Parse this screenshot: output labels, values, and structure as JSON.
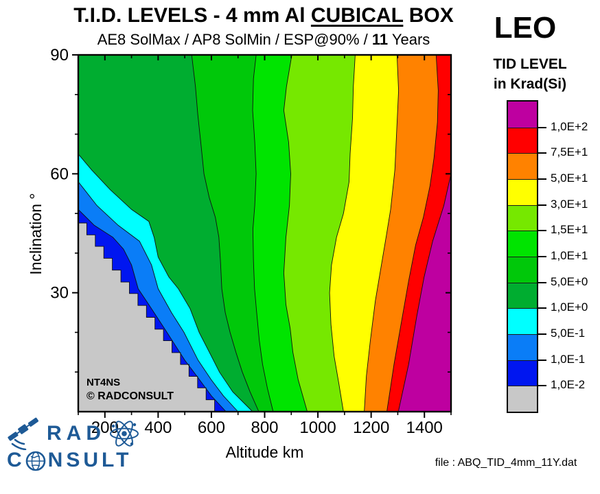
{
  "title": {
    "prefix": "T.I.D. LEVELS - 4 mm Al ",
    "underlined": "CUBICAL",
    "suffix": " BOX"
  },
  "subtitle": {
    "prefix": "AE8 SolMax / AP8 SolMin / ESP@90% / ",
    "bold": "11",
    "suffix": " Years"
  },
  "watermark": {
    "line1": "NT4NS",
    "line2": "© RADCONSULT"
  },
  "file_note": "file : ABQ_TID_4mm_11Y.dat",
  "legend": {
    "region": "LEO",
    "title_line1": "TID LEVEL",
    "title_line2": "in Krad(Si)",
    "tick_labels_top_to_bottom": [
      "1,0E+2",
      "7,5E+1",
      "5,0E+1",
      "3,0E+1",
      "1,5E+1",
      "1,0E+1",
      "5,0E+0",
      "1,0E+0",
      "5,0E-1",
      "1,0E-1",
      "1,0E-2"
    ],
    "band_colors_top_to_bottom": [
      "#BE00A0",
      "#FF0000",
      "#FF8200",
      "#FFFF00",
      "#76E800",
      "#00E400",
      "#00C80A",
      "#00AD30",
      "#00FFFF",
      "#0A7DF7",
      "#0016F0",
      "#C8C8C8"
    ]
  },
  "logo": {
    "word1": "RAD",
    "word2_prefix": "C",
    "word2_suffix": "NSULT",
    "color": "#1E5A96"
  },
  "chart_data": {
    "type": "contour",
    "title": "T.I.D. LEVELS - 4 mm Al CUBICAL BOX",
    "subtitle": "AE8 SolMax / AP8 SolMin / ESP@90% / 11 Years",
    "xlabel": "Altitude km",
    "ylabel": "Inclination °",
    "unit": "Krad(Si)",
    "grid": false,
    "legend_position": "right",
    "x_range": [
      100,
      1500
    ],
    "y_range": [
      0,
      90
    ],
    "x_major_ticks": [
      200,
      400,
      600,
      800,
      1000,
      1200,
      1400
    ],
    "x_minor_ticks": [
      100,
      300,
      500,
      700,
      900,
      1100,
      1300,
      1500
    ],
    "y_major_ticks": [
      30,
      60,
      90
    ],
    "y_minor_ticks": [
      10,
      20,
      40,
      50,
      70,
      80
    ],
    "contours": [
      {
        "level": "1,0E-2",
        "points": [
          [
            100,
            47.6
          ],
          [
            132,
            47.6
          ],
          [
            132,
            44.6
          ],
          [
            164,
            44.6
          ],
          [
            164,
            41.7
          ],
          [
            196,
            41.7
          ],
          [
            196,
            38.7
          ],
          [
            228,
            38.7
          ],
          [
            228,
            35.7
          ],
          [
            260,
            35.7
          ],
          [
            260,
            32.7
          ],
          [
            292,
            32.7
          ],
          [
            292,
            29.8
          ],
          [
            324,
            29.8
          ],
          [
            324,
            26.8
          ],
          [
            356,
            26.8
          ],
          [
            356,
            23.8
          ],
          [
            388,
            23.8
          ],
          [
            388,
            20.8
          ],
          [
            420,
            20.8
          ],
          [
            420,
            17.9
          ],
          [
            452,
            17.9
          ],
          [
            452,
            14.9
          ],
          [
            484,
            14.9
          ],
          [
            484,
            11.9
          ],
          [
            516,
            11.9
          ],
          [
            516,
            8.9
          ],
          [
            548,
            8.9
          ],
          [
            548,
            6
          ],
          [
            580,
            6
          ],
          [
            580,
            3
          ],
          [
            612,
            3
          ],
          [
            612,
            0
          ]
        ]
      },
      {
        "level": "1,0E-1",
        "points": [
          [
            100,
            51
          ],
          [
            160,
            47
          ],
          [
            230,
            44
          ],
          [
            270,
            41
          ],
          [
            300,
            37
          ],
          [
            325,
            31
          ],
          [
            365,
            27
          ],
          [
            433,
            20
          ],
          [
            500,
            13
          ],
          [
            545,
            9
          ],
          [
            600,
            4
          ],
          [
            655,
            0
          ]
        ]
      },
      {
        "level": "5,0E-1",
        "points": [
          [
            100,
            58
          ],
          [
            170,
            52
          ],
          [
            250,
            47
          ],
          [
            330,
            43
          ],
          [
            375,
            37
          ],
          [
            400,
            31
          ],
          [
            450,
            25
          ],
          [
            497,
            20
          ],
          [
            550,
            13
          ],
          [
            600,
            8
          ],
          [
            645,
            4
          ],
          [
            700,
            0
          ]
        ]
      },
      {
        "level": "1,0E+0",
        "points": [
          [
            100,
            65
          ],
          [
            150,
            61
          ],
          [
            220,
            56
          ],
          [
            300,
            51
          ],
          [
            365,
            48
          ],
          [
            385,
            44
          ],
          [
            400,
            39
          ],
          [
            440,
            34
          ],
          [
            476,
            31
          ],
          [
            520,
            26
          ],
          [
            554,
            20
          ],
          [
            600,
            14
          ],
          [
            630,
            10
          ],
          [
            680,
            5
          ],
          [
            755,
            0
          ]
        ]
      },
      {
        "level": "5,0E+0",
        "points": [
          [
            526,
            90
          ],
          [
            540,
            82
          ],
          [
            549,
            75
          ],
          [
            560,
            68
          ],
          [
            572,
            60
          ],
          [
            592,
            54
          ],
          [
            615,
            49
          ],
          [
            628,
            44
          ],
          [
            634,
            38
          ],
          [
            639,
            31
          ],
          [
            652,
            25
          ],
          [
            670,
            20
          ],
          [
            692,
            15
          ],
          [
            716,
            10
          ],
          [
            745,
            5
          ],
          [
            778,
            0
          ]
        ]
      },
      {
        "level": "1,0E+1",
        "points": [
          [
            768,
            90
          ],
          [
            758,
            84
          ],
          [
            755,
            76
          ],
          [
            763,
            68
          ],
          [
            768,
            60
          ],
          [
            763,
            52
          ],
          [
            756,
            46
          ],
          [
            758,
            38
          ],
          [
            762,
            31
          ],
          [
            770,
            25
          ],
          [
            780,
            18
          ],
          [
            792,
            12
          ],
          [
            810,
            6
          ],
          [
            832,
            0
          ]
        ]
      },
      {
        "level": "1,5E+1",
        "points": [
          [
            902,
            90
          ],
          [
            882,
            82
          ],
          [
            872,
            76
          ],
          [
            890,
            68
          ],
          [
            898,
            60
          ],
          [
            893,
            52
          ],
          [
            880,
            44
          ],
          [
            872,
            35
          ],
          [
            880,
            27
          ],
          [
            896,
            21
          ],
          [
            906,
            15
          ],
          [
            926,
            8
          ],
          [
            960,
            0
          ]
        ]
      },
      {
        "level": "3,0E+1",
        "points": [
          [
            1140,
            90
          ],
          [
            1133,
            82
          ],
          [
            1130,
            74
          ],
          [
            1121,
            65
          ],
          [
            1117,
            58
          ],
          [
            1096,
            50
          ],
          [
            1070,
            44
          ],
          [
            1051,
            37
          ],
          [
            1044,
            30
          ],
          [
            1049,
            22
          ],
          [
            1061,
            14
          ],
          [
            1079,
            7
          ],
          [
            1096,
            0
          ]
        ]
      },
      {
        "level": "5,0E+1",
        "points": [
          [
            1297,
            90
          ],
          [
            1303,
            81
          ],
          [
            1296,
            71
          ],
          [
            1289,
            61
          ],
          [
            1273,
            51
          ],
          [
            1256,
            44
          ],
          [
            1236,
            36
          ],
          [
            1216,
            28
          ],
          [
            1197,
            18
          ],
          [
            1182,
            9
          ],
          [
            1174,
            0
          ]
        ]
      },
      {
        "level": "7,5E+1",
        "points": [
          [
            1444,
            90
          ],
          [
            1452,
            81
          ],
          [
            1449,
            73
          ],
          [
            1436,
            64
          ],
          [
            1421,
            57
          ],
          [
            1396,
            49
          ],
          [
            1367,
            42
          ],
          [
            1341,
            33
          ],
          [
            1312,
            22
          ],
          [
            1286,
            12
          ],
          [
            1259,
            0
          ]
        ]
      },
      {
        "level": "1,0E+2",
        "points": [
          [
            1500,
            60
          ],
          [
            1473,
            52
          ],
          [
            1431,
            43
          ],
          [
            1399,
            34
          ],
          [
            1371,
            24
          ],
          [
            1341,
            12
          ],
          [
            1302,
            0
          ]
        ]
      }
    ]
  }
}
